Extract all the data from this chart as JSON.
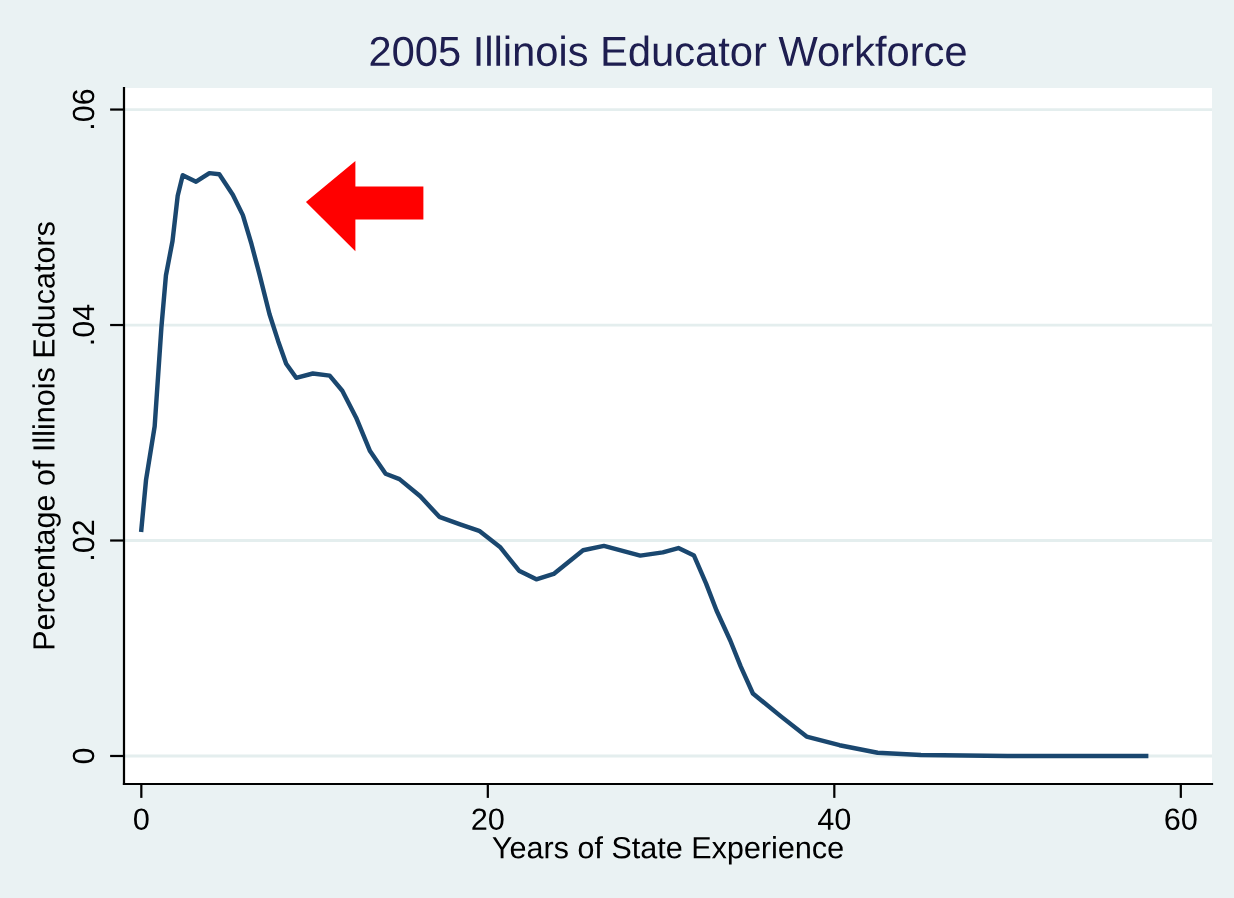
{
  "chart_data": {
    "type": "line",
    "title": "2005 Illinois Educator Workforce",
    "xlabel": "Years of State Experience",
    "ylabel": "Percentage of Illinois Educators",
    "x": [
      0,
      0.27,
      0.77,
      1.16,
      1.42,
      1.8,
      2.1,
      2.39,
      3.16,
      3.93,
      4.5,
      5.28,
      5.86,
      6.36,
      6.82,
      7.4,
      7.9,
      8.36,
      8.94,
      9.9,
      10.87,
      11.6,
      12.4,
      13.2,
      14.1,
      14.9,
      16.1,
      17.2,
      18.4,
      19.5,
      20.7,
      21.8,
      22.8,
      23.8,
      25.5,
      26.7,
      28.8,
      30.1,
      31.0,
      31.9,
      32.6,
      33.2,
      34.0,
      34.6,
      35.3,
      36.9,
      38.4,
      40.3,
      42.5,
      45,
      50,
      58
    ],
    "series": [
      {
        "color": "#1a476f",
        "values": [
          0.021,
          0.0256,
          0.0306,
          0.0398,
          0.0446,
          0.0478,
          0.052,
          0.0539,
          0.0533,
          0.0541,
          0.054,
          0.0521,
          0.0502,
          0.0475,
          0.0447,
          0.041,
          0.0385,
          0.0364,
          0.0351,
          0.0355,
          0.0353,
          0.0339,
          0.0314,
          0.0283,
          0.0262,
          0.0257,
          0.0241,
          0.0222,
          0.0215,
          0.0209,
          0.0194,
          0.0172,
          0.0164,
          0.0169,
          0.0191,
          0.0195,
          0.0186,
          0.0189,
          0.0193,
          0.0186,
          0.016,
          0.0135,
          0.0107,
          0.0083,
          0.0058,
          0.0037,
          0.0018,
          0.001,
          0.0003,
          0.0001,
          0,
          0
        ]
      }
    ],
    "xlim": [
      -1,
      61.8
    ],
    "ylim": [
      -0.0026,
      0.062
    ],
    "xticks": [
      0,
      20,
      40,
      60
    ],
    "yticks": [
      {
        "value": 0,
        "label": "0"
      },
      {
        "value": 0.02,
        "label": ".02"
      },
      {
        "value": 0.04,
        "label": ".04"
      },
      {
        "value": 0.06,
        "label": ".06"
      }
    ],
    "grid": "y",
    "marker": "none",
    "line_style": "solid"
  }
}
